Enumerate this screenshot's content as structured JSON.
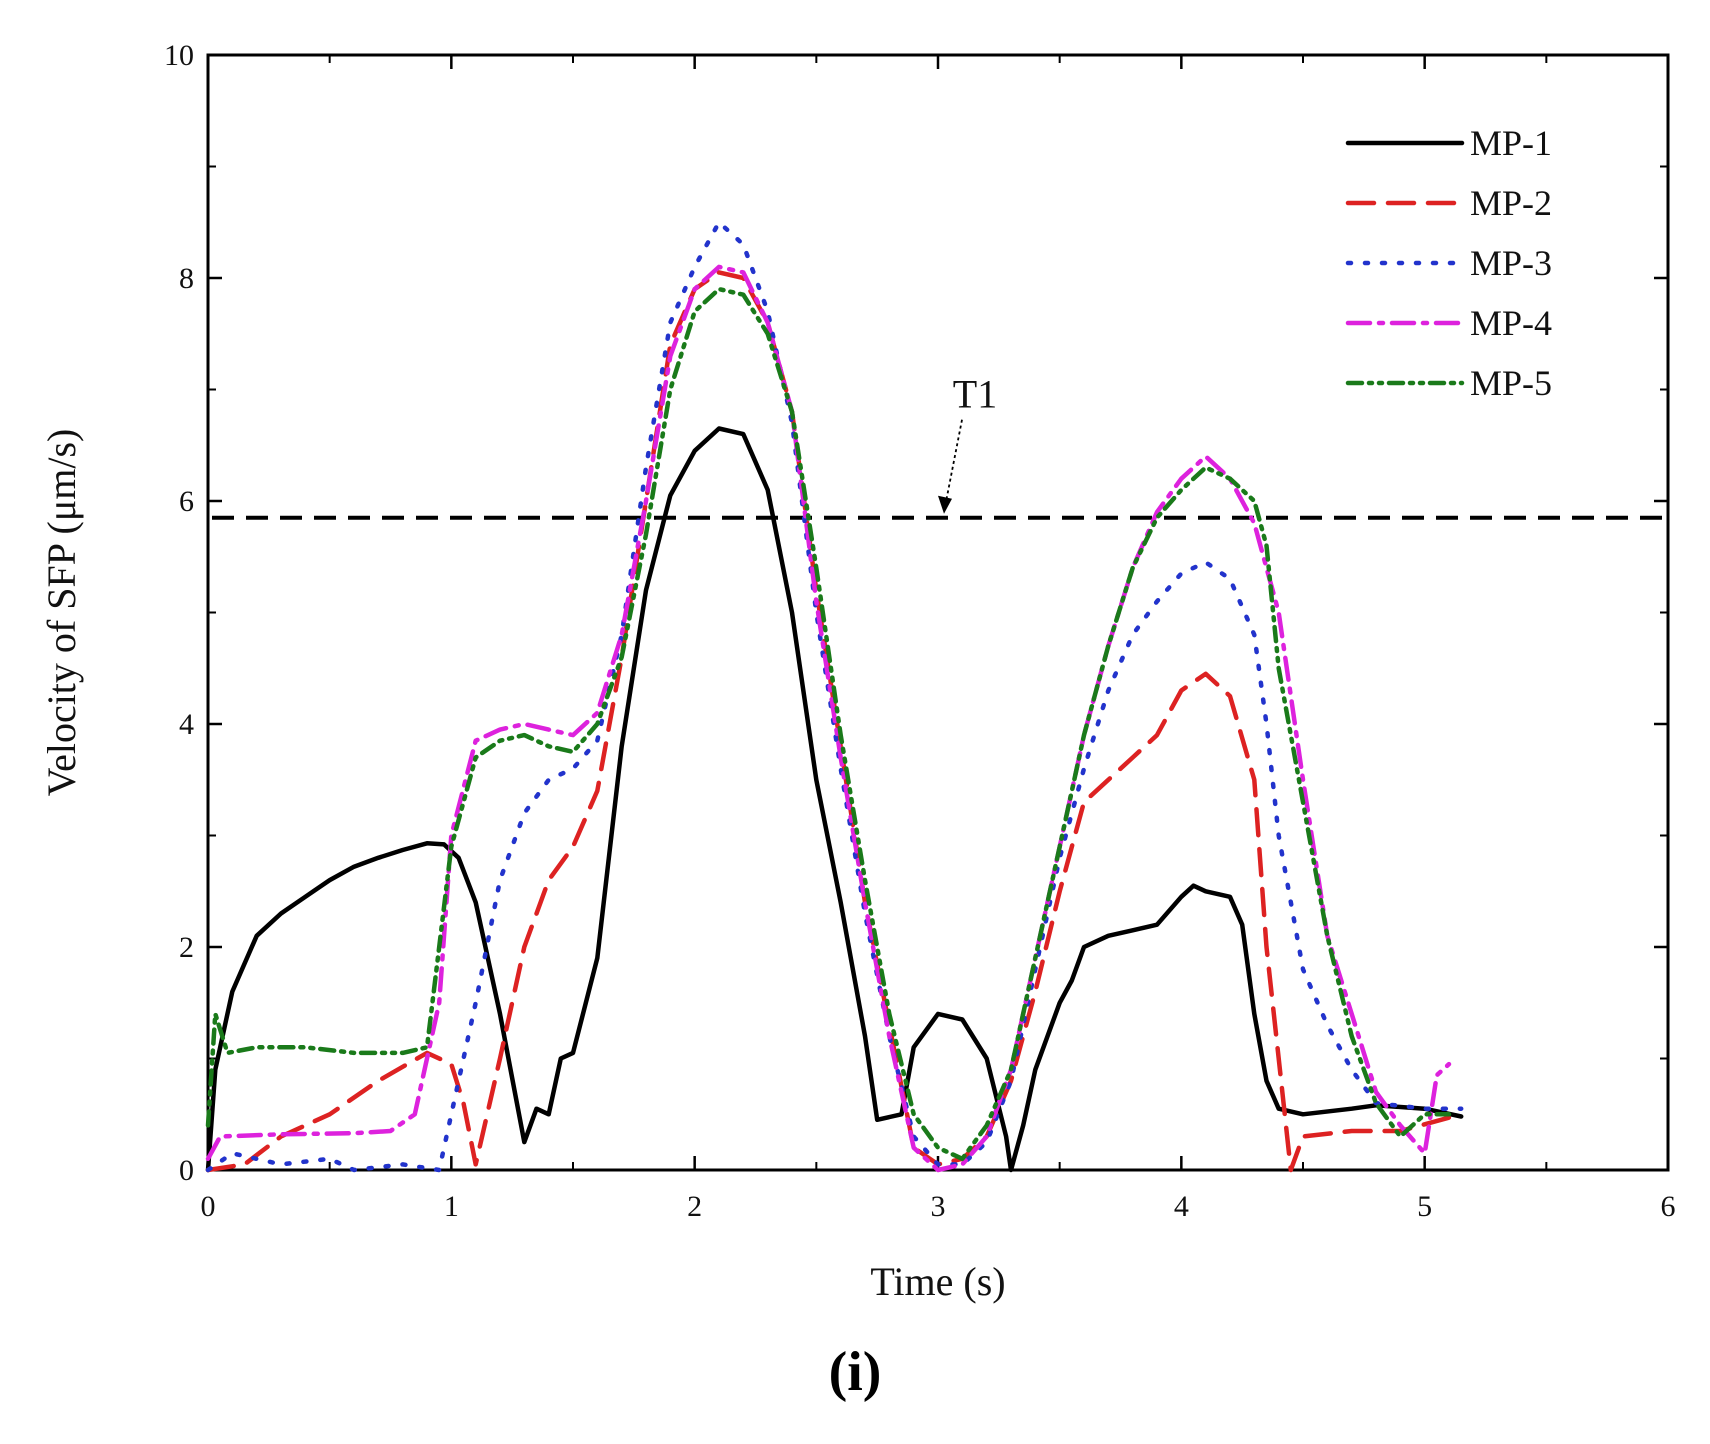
{
  "chart_data": {
    "type": "line",
    "title": "",
    "xlabel": "Time (s)",
    "ylabel": "Velocity of SFP (μm/s)",
    "xlim": [
      0,
      6
    ],
    "ylim": [
      0,
      10
    ],
    "xticks": [
      0,
      1,
      2,
      3,
      4,
      5,
      6
    ],
    "yticks": [
      0,
      2,
      4,
      6,
      8,
      10
    ],
    "x_tick_labels": [
      "0",
      "1",
      "2",
      "3",
      "4",
      "5",
      "6"
    ],
    "y_tick_labels": [
      "0",
      "2",
      "4",
      "6",
      "8",
      "10"
    ],
    "legend_position": "top-right",
    "threshold": {
      "label": "T1",
      "value": 5.85
    },
    "series": [
      {
        "name": "MP-1",
        "color": "#000000",
        "style": "solid",
        "points": [
          [
            0,
            0
          ],
          [
            0.03,
            0.9
          ],
          [
            0.1,
            1.6
          ],
          [
            0.2,
            2.1
          ],
          [
            0.3,
            2.3
          ],
          [
            0.4,
            2.45
          ],
          [
            0.5,
            2.6
          ],
          [
            0.6,
            2.72
          ],
          [
            0.7,
            2.8
          ],
          [
            0.8,
            2.87
          ],
          [
            0.9,
            2.93
          ],
          [
            0.97,
            2.92
          ],
          [
            1.03,
            2.8
          ],
          [
            1.1,
            2.4
          ],
          [
            1.2,
            1.4
          ],
          [
            1.3,
            0.25
          ],
          [
            1.35,
            0.55
          ],
          [
            1.4,
            0.5
          ],
          [
            1.45,
            1.0
          ],
          [
            1.5,
            1.05
          ],
          [
            1.6,
            1.9
          ],
          [
            1.7,
            3.8
          ],
          [
            1.8,
            5.2
          ],
          [
            1.9,
            6.05
          ],
          [
            2.0,
            6.45
          ],
          [
            2.1,
            6.65
          ],
          [
            2.2,
            6.6
          ],
          [
            2.3,
            6.1
          ],
          [
            2.4,
            5.0
          ],
          [
            2.5,
            3.5
          ],
          [
            2.6,
            2.4
          ],
          [
            2.7,
            1.2
          ],
          [
            2.75,
            0.45
          ],
          [
            2.85,
            0.5
          ],
          [
            2.9,
            1.1
          ],
          [
            3.0,
            1.4
          ],
          [
            3.1,
            1.35
          ],
          [
            3.2,
            1.0
          ],
          [
            3.28,
            0.3
          ],
          [
            3.3,
            0.0
          ],
          [
            3.35,
            0.4
          ],
          [
            3.4,
            0.9
          ],
          [
            3.5,
            1.5
          ],
          [
            3.55,
            1.7
          ],
          [
            3.6,
            2.0
          ],
          [
            3.7,
            2.1
          ],
          [
            3.8,
            2.15
          ],
          [
            3.9,
            2.2
          ],
          [
            4.0,
            2.45
          ],
          [
            4.05,
            2.55
          ],
          [
            4.1,
            2.5
          ],
          [
            4.2,
            2.45
          ],
          [
            4.25,
            2.2
          ],
          [
            4.3,
            1.4
          ],
          [
            4.35,
            0.8
          ],
          [
            4.4,
            0.55
          ],
          [
            4.5,
            0.5
          ],
          [
            4.7,
            0.55
          ],
          [
            4.8,
            0.58
          ],
          [
            5.0,
            0.55
          ],
          [
            5.15,
            0.48
          ]
        ]
      },
      {
        "name": "MP-2",
        "color": "#dd2222",
        "style": "dashed",
        "points": [
          [
            0,
            0
          ],
          [
            0.15,
            0.05
          ],
          [
            0.3,
            0.3
          ],
          [
            0.5,
            0.5
          ],
          [
            0.7,
            0.8
          ],
          [
            0.9,
            1.05
          ],
          [
            1.0,
            0.95
          ],
          [
            1.05,
            0.6
          ],
          [
            1.1,
            0.05
          ],
          [
            1.2,
            1.0
          ],
          [
            1.3,
            2.0
          ],
          [
            1.4,
            2.6
          ],
          [
            1.5,
            2.9
          ],
          [
            1.6,
            3.4
          ],
          [
            1.7,
            4.6
          ],
          [
            1.8,
            6.0
          ],
          [
            1.9,
            7.4
          ],
          [
            2.0,
            7.9
          ],
          [
            2.1,
            8.05
          ],
          [
            2.2,
            8.0
          ],
          [
            2.3,
            7.6
          ],
          [
            2.4,
            6.8
          ],
          [
            2.5,
            5.2
          ],
          [
            2.6,
            3.8
          ],
          [
            2.7,
            2.4
          ],
          [
            2.8,
            1.3
          ],
          [
            2.9,
            0.2
          ],
          [
            3.0,
            0.05
          ],
          [
            3.1,
            0.1
          ],
          [
            3.2,
            0.3
          ],
          [
            3.3,
            0.8
          ],
          [
            3.4,
            1.6
          ],
          [
            3.5,
            2.5
          ],
          [
            3.6,
            3.3
          ],
          [
            3.7,
            3.5
          ],
          [
            3.8,
            3.7
          ],
          [
            3.9,
            3.9
          ],
          [
            4.0,
            4.3
          ],
          [
            4.1,
            4.45
          ],
          [
            4.2,
            4.25
          ],
          [
            4.3,
            3.5
          ],
          [
            4.35,
            2.0
          ],
          [
            4.4,
            1.0
          ],
          [
            4.45,
            0.0
          ],
          [
            4.5,
            0.3
          ],
          [
            4.7,
            0.35
          ],
          [
            4.9,
            0.35
          ],
          [
            5.15,
            0.5
          ]
        ]
      },
      {
        "name": "MP-3",
        "color": "#2233cc",
        "style": "dotted",
        "points": [
          [
            0,
            0
          ],
          [
            0.1,
            0.15
          ],
          [
            0.3,
            0.05
          ],
          [
            0.5,
            0.1
          ],
          [
            0.6,
            0.0
          ],
          [
            0.8,
            0.05
          ],
          [
            0.95,
            0.0
          ],
          [
            1.0,
            0.5
          ],
          [
            1.1,
            1.5
          ],
          [
            1.2,
            2.6
          ],
          [
            1.3,
            3.2
          ],
          [
            1.4,
            3.5
          ],
          [
            1.5,
            3.6
          ],
          [
            1.6,
            3.85
          ],
          [
            1.7,
            4.8
          ],
          [
            1.8,
            6.3
          ],
          [
            1.9,
            7.6
          ],
          [
            2.0,
            8.1
          ],
          [
            2.1,
            8.5
          ],
          [
            2.2,
            8.3
          ],
          [
            2.3,
            7.7
          ],
          [
            2.4,
            6.7
          ],
          [
            2.5,
            5.0
          ],
          [
            2.6,
            3.6
          ],
          [
            2.7,
            2.3
          ],
          [
            2.8,
            1.2
          ],
          [
            2.9,
            0.3
          ],
          [
            3.0,
            0.05
          ],
          [
            3.1,
            0.05
          ],
          [
            3.2,
            0.25
          ],
          [
            3.3,
            0.8
          ],
          [
            3.4,
            1.8
          ],
          [
            3.5,
            2.8
          ],
          [
            3.6,
            3.6
          ],
          [
            3.7,
            4.3
          ],
          [
            3.8,
            4.8
          ],
          [
            3.9,
            5.1
          ],
          [
            4.0,
            5.35
          ],
          [
            4.1,
            5.45
          ],
          [
            4.2,
            5.3
          ],
          [
            4.3,
            4.8
          ],
          [
            4.35,
            4.0
          ],
          [
            4.4,
            3.0
          ],
          [
            4.5,
            1.8
          ],
          [
            4.6,
            1.3
          ],
          [
            4.7,
            0.9
          ],
          [
            4.8,
            0.6
          ],
          [
            5.0,
            0.55
          ],
          [
            5.15,
            0.55
          ]
        ]
      },
      {
        "name": "MP-4",
        "color": "#dd22dd",
        "style": "dashdot",
        "points": [
          [
            0,
            0.1
          ],
          [
            0.05,
            0.3
          ],
          [
            0.3,
            0.32
          ],
          [
            0.6,
            0.33
          ],
          [
            0.75,
            0.35
          ],
          [
            0.85,
            0.5
          ],
          [
            0.95,
            1.5
          ],
          [
            1.0,
            3.0
          ],
          [
            1.1,
            3.85
          ],
          [
            1.2,
            3.95
          ],
          [
            1.3,
            4.0
          ],
          [
            1.4,
            3.95
          ],
          [
            1.5,
            3.9
          ],
          [
            1.6,
            4.1
          ],
          [
            1.7,
            4.8
          ],
          [
            1.8,
            6.0
          ],
          [
            1.9,
            7.3
          ],
          [
            2.0,
            7.9
          ],
          [
            2.1,
            8.1
          ],
          [
            2.2,
            8.05
          ],
          [
            2.3,
            7.6
          ],
          [
            2.4,
            6.8
          ],
          [
            2.5,
            5.1
          ],
          [
            2.6,
            3.7
          ],
          [
            2.7,
            2.4
          ],
          [
            2.8,
            1.2
          ],
          [
            2.9,
            0.2
          ],
          [
            3.0,
            0.0
          ],
          [
            3.1,
            0.05
          ],
          [
            3.2,
            0.3
          ],
          [
            3.3,
            0.9
          ],
          [
            3.4,
            1.9
          ],
          [
            3.5,
            2.9
          ],
          [
            3.6,
            3.9
          ],
          [
            3.7,
            4.7
          ],
          [
            3.8,
            5.4
          ],
          [
            3.9,
            5.9
          ],
          [
            4.0,
            6.2
          ],
          [
            4.1,
            6.4
          ],
          [
            4.2,
            6.2
          ],
          [
            4.3,
            5.8
          ],
          [
            4.4,
            5.0
          ],
          [
            4.5,
            3.5
          ],
          [
            4.6,
            2.1
          ],
          [
            4.7,
            1.4
          ],
          [
            4.8,
            0.7
          ],
          [
            4.9,
            0.4
          ],
          [
            5.0,
            0.15
          ],
          [
            5.05,
            0.85
          ],
          [
            5.1,
            0.95
          ]
        ]
      },
      {
        "name": "MP-5",
        "color": "#1a7a1a",
        "style": "dashdotdot",
        "points": [
          [
            0,
            0.4
          ],
          [
            0.03,
            1.4
          ],
          [
            0.08,
            1.05
          ],
          [
            0.2,
            1.1
          ],
          [
            0.4,
            1.1
          ],
          [
            0.6,
            1.05
          ],
          [
            0.8,
            1.05
          ],
          [
            0.9,
            1.1
          ],
          [
            0.95,
            2.0
          ],
          [
            1.0,
            2.9
          ],
          [
            1.1,
            3.7
          ],
          [
            1.2,
            3.85
          ],
          [
            1.3,
            3.9
          ],
          [
            1.4,
            3.8
          ],
          [
            1.5,
            3.75
          ],
          [
            1.6,
            4.0
          ],
          [
            1.7,
            4.6
          ],
          [
            1.8,
            5.7
          ],
          [
            1.9,
            7.0
          ],
          [
            2.0,
            7.7
          ],
          [
            2.1,
            7.9
          ],
          [
            2.2,
            7.85
          ],
          [
            2.3,
            7.5
          ],
          [
            2.4,
            6.8
          ],
          [
            2.5,
            5.4
          ],
          [
            2.6,
            3.9
          ],
          [
            2.7,
            2.6
          ],
          [
            2.8,
            1.4
          ],
          [
            2.9,
            0.5
          ],
          [
            3.0,
            0.2
          ],
          [
            3.1,
            0.1
          ],
          [
            3.2,
            0.4
          ],
          [
            3.3,
            0.9
          ],
          [
            3.4,
            1.9
          ],
          [
            3.5,
            2.9
          ],
          [
            3.6,
            3.9
          ],
          [
            3.7,
            4.7
          ],
          [
            3.8,
            5.4
          ],
          [
            3.9,
            5.85
          ],
          [
            4.0,
            6.1
          ],
          [
            4.1,
            6.3
          ],
          [
            4.2,
            6.2
          ],
          [
            4.3,
            6.0
          ],
          [
            4.35,
            5.6
          ],
          [
            4.4,
            4.5
          ],
          [
            4.5,
            3.3
          ],
          [
            4.6,
            2.1
          ],
          [
            4.7,
            1.2
          ],
          [
            4.8,
            0.6
          ],
          [
            4.9,
            0.3
          ],
          [
            5.0,
            0.5
          ],
          [
            5.1,
            0.5
          ]
        ]
      }
    ]
  },
  "figure": {
    "panel_label": "(i)"
  }
}
